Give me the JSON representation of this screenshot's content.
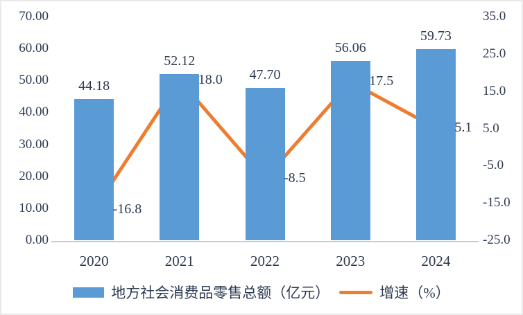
{
  "colors": {
    "bar": "#5b9bd5",
    "line": "#ed7d31",
    "text": "#2d3a52",
    "axis_line": "#c9cdd2"
  },
  "legend": {
    "bar_label": "地方社会消费品零售总额（亿元）",
    "line_label": "增速（%）"
  },
  "chart_data": {
    "type": "combo-bar-line",
    "title": "",
    "categories": [
      "2020",
      "2021",
      "2022",
      "2023",
      "2024"
    ],
    "series": [
      {
        "name": "地方社会消费品零售总额（亿元）",
        "type": "bar",
        "axis": "left",
        "color": "#5b9bd5",
        "values": [
          44.18,
          52.12,
          47.7,
          56.06,
          59.73
        ],
        "labels": [
          "44.18",
          "52.12",
          "47.70",
          "56.06",
          "59.73"
        ]
      },
      {
        "name": "增速（%）",
        "type": "line",
        "axis": "right",
        "color": "#ed7d31",
        "values": [
          -16.8,
          18.0,
          -8.5,
          17.5,
          5.1
        ],
        "labels": [
          "-16.8",
          "18.0",
          "-8.5",
          "17.5",
          "5.1"
        ]
      }
    ],
    "left_axis": {
      "min": 0,
      "max": 70,
      "tick_labels": [
        "0.00",
        "10.00",
        "20.00",
        "30.00",
        "40.00",
        "50.00",
        "60.00",
        "70.00"
      ],
      "tick_values": [
        0,
        10,
        20,
        30,
        40,
        50,
        60,
        70
      ]
    },
    "right_axis": {
      "min": -25,
      "max": 35,
      "tick_labels": [
        "-25.0",
        "-15.0",
        "-5.0",
        "5.0",
        "15.0",
        "25.0",
        "35.0"
      ],
      "tick_values": [
        -25,
        -15,
        -5,
        5,
        15,
        25,
        35
      ]
    },
    "grid": false,
    "legend_position": "bottom"
  }
}
